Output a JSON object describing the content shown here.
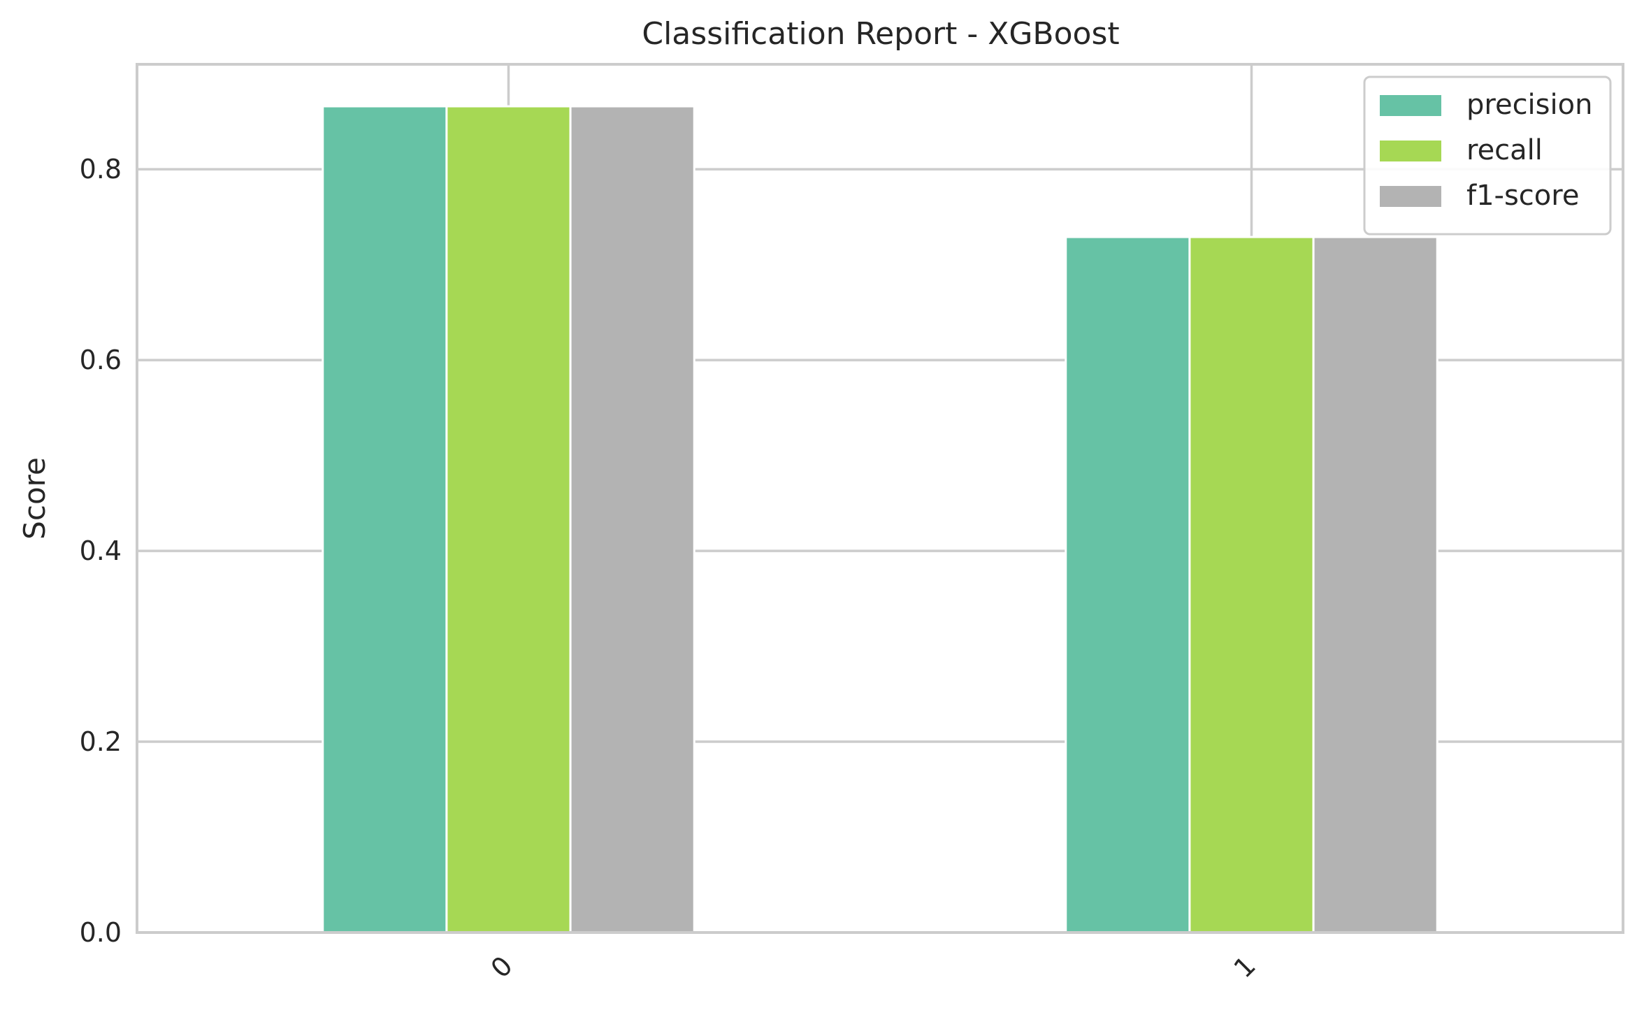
{
  "chart_data": {
    "type": "bar",
    "title": "Classification Report - XGBoost",
    "xlabel": "",
    "ylabel": "Score",
    "categories": [
      "0",
      "1"
    ],
    "series": [
      {
        "name": "precision",
        "values": [
          0.866,
          0.729
        ]
      },
      {
        "name": "recall",
        "values": [
          0.866,
          0.729
        ]
      },
      {
        "name": "f1-score",
        "values": [
          0.866,
          0.729
        ]
      }
    ],
    "ylim": [
      0,
      0.91
    ],
    "yticks": [
      0.0,
      0.2,
      0.4,
      0.6,
      0.8
    ],
    "ytick_labels": [
      "0.0",
      "0.2",
      "0.4",
      "0.6",
      "0.8"
    ],
    "colors": [
      "#66c2a5",
      "#a6d854",
      "#b3b3b3"
    ],
    "grid": true,
    "legend": "top-right"
  }
}
